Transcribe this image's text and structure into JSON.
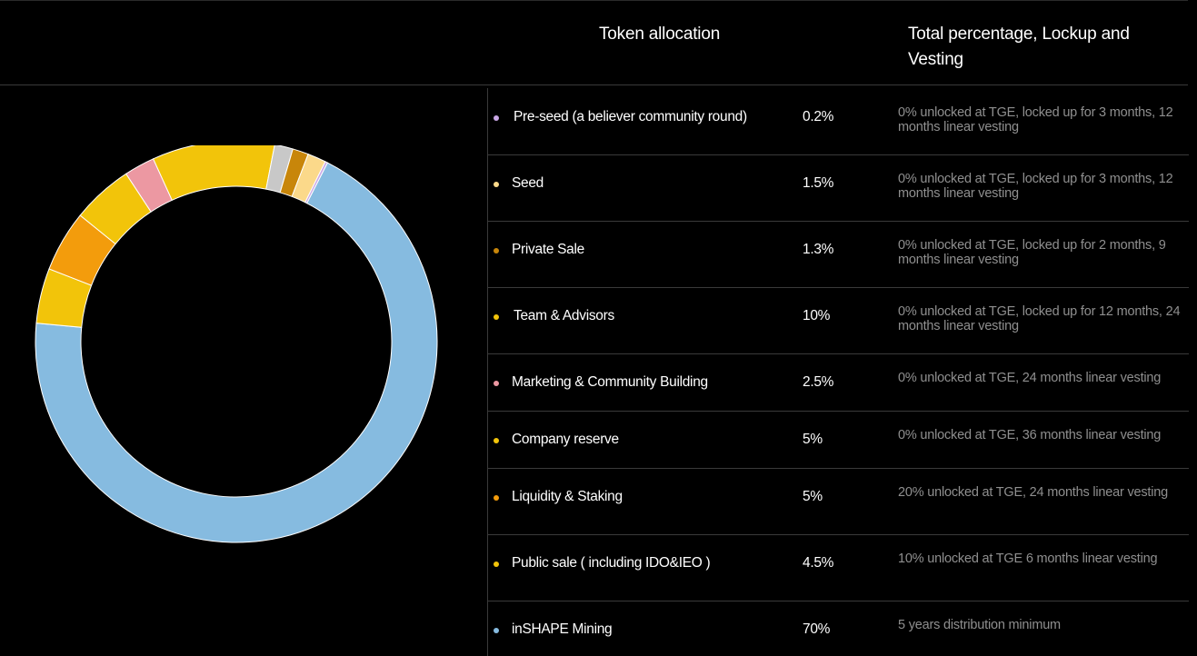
{
  "header": {
    "allocation_title": "Token allocation",
    "lockup_title": "Total percentage, Lockup and Vesting"
  },
  "rows": [
    {
      "name": "Pre-seed (a believer community round)",
      "percent": "0.2%",
      "note": "0% unlocked at TGE, locked up for 3 months, 12 months linear vesting",
      "color": "#c9a7e6"
    },
    {
      "name": "Seed",
      "percent": "1.5%",
      "note": "0% unlocked at TGE, locked up for 3 months, 12 months linear vesting",
      "color": "#fbd98a"
    },
    {
      "name": "Private Sale",
      "percent": "1.3%",
      "note": "0% unlocked at TGE, locked up for 2 months, 9 months linear vesting",
      "color": "#c8860a"
    },
    {
      "name": "Team & Advisors",
      "percent": "10%",
      "note": "0% unlocked at TGE, locked up for 12 months, 24 months linear vesting",
      "color": "#f2c40a"
    },
    {
      "name": "Marketing & Community Building",
      "percent": "2.5%",
      "note": "0% unlocked at TGE, 24 months linear vesting",
      "color": "#ec98a2"
    },
    {
      "name": "Company reserve",
      "percent": "5%",
      "note": "0% unlocked at TGE, 36 months linear vesting",
      "color": "#f2c40a"
    },
    {
      "name": "Liquidity & Staking",
      "percent": "5%",
      "note": "20% unlocked at TGE, 24 months linear vesting",
      "color": "#f39c0c"
    },
    {
      "name": "Public sale ( including IDO&IEO )",
      "percent": "4.5%",
      "note": "10% unlocked at TGE 6 months linear vesting",
      "color": "#f2c40a"
    },
    {
      "name": "inSHAPE Mining",
      "percent": "70%",
      "note": "5 years distribution minimum",
      "color": "#86bbe0"
    }
  ],
  "chart_data": {
    "type": "pie",
    "variant": "donut",
    "slices": [
      {
        "label": "inSHAPE Mining",
        "value": 70,
        "color": "#86bbe0"
      },
      {
        "label": "Public sale ( including IDO&IEO )",
        "value": 4.5,
        "color": "#f2c40a"
      },
      {
        "label": "Liquidity & Staking",
        "value": 5,
        "color": "#f39c0c"
      },
      {
        "label": "Company reserve",
        "value": 5,
        "color": "#f2c40a"
      },
      {
        "label": "Marketing & Community Building",
        "value": 2.5,
        "color": "#ec98a2"
      },
      {
        "label": "Team & Advisors",
        "value": 10,
        "color": "#f2c40a"
      },
      {
        "label": "(unlabeled)",
        "value": 1.5,
        "color": "#c8c8c8"
      },
      {
        "label": "Private Sale",
        "value": 1.3,
        "color": "#c8860a"
      },
      {
        "label": "Seed",
        "value": 1.5,
        "color": "#fbd98a"
      },
      {
        "label": "Pre-seed (a believer community round)",
        "value": 0.2,
        "color": "#c9a7e6"
      }
    ],
    "legend": "none"
  }
}
